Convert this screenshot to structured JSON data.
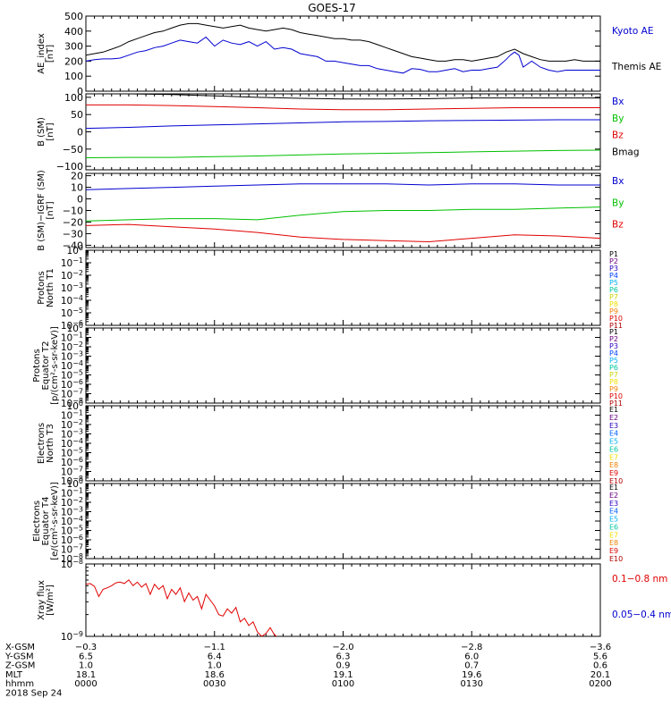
{
  "title": "GOES-17",
  "colors": {
    "black": "#000000",
    "red": "#e00000",
    "blue": "#0000d0",
    "green": "#00c000"
  },
  "chart_data": [
    {
      "id": "ae",
      "type": "line",
      "ylabel": [
        "AE_index",
        "[nT]"
      ],
      "ylim": [
        0,
        500
      ],
      "yticks": [
        0,
        100,
        200,
        300,
        400,
        500
      ],
      "ytick_labels": [
        "0",
        "100",
        "200",
        "300",
        "400",
        "500"
      ],
      "legend": [
        {
          "label": "Kyoto AE",
          "color": "#0000d0"
        },
        {
          "label": "Themis AE",
          "color": "#000000"
        }
      ],
      "series": [
        {
          "name": "Themis AE",
          "color": "#000000",
          "x": [
            0,
            2,
            4,
            6,
            8,
            10,
            12,
            14,
            16,
            18,
            20,
            22,
            24,
            26,
            28,
            30,
            32,
            34,
            36,
            38,
            40,
            42,
            44,
            46,
            48,
            50,
            52,
            54,
            56,
            58,
            60,
            62,
            64,
            66,
            68,
            70,
            72,
            74,
            76,
            78,
            80,
            82,
            84,
            86,
            88,
            90,
            92,
            94,
            96,
            98,
            100,
            102,
            104,
            106,
            108,
            110,
            112,
            114,
            116,
            118,
            120
          ],
          "values": [
            240,
            250,
            260,
            280,
            300,
            330,
            350,
            370,
            390,
            400,
            420,
            440,
            450,
            450,
            440,
            430,
            420,
            430,
            440,
            420,
            410,
            400,
            410,
            420,
            410,
            390,
            380,
            370,
            360,
            350,
            350,
            340,
            340,
            330,
            310,
            290,
            270,
            250,
            230,
            220,
            210,
            200,
            200,
            210,
            210,
            200,
            210,
            220,
            230,
            260,
            280,
            250,
            230,
            210,
            200,
            200,
            200,
            210,
            200,
            200,
            200
          ]
        },
        {
          "name": "Kyoto AE",
          "color": "#0000d0",
          "x": [
            0,
            2,
            4,
            6,
            8,
            10,
            12,
            14,
            16,
            18,
            20,
            22,
            24,
            26,
            28,
            30,
            32,
            34,
            36,
            38,
            40,
            42,
            44,
            46,
            48,
            50,
            52,
            54,
            56,
            58,
            60,
            62,
            64,
            66,
            68,
            70,
            72,
            74,
            76,
            78,
            80,
            82,
            84,
            86,
            88,
            90,
            92,
            94,
            96,
            98,
            99,
            100,
            101,
            102,
            104,
            106,
            108,
            110,
            112,
            114,
            116,
            118,
            120
          ],
          "values": [
            200,
            210,
            215,
            215,
            220,
            240,
            260,
            270,
            290,
            300,
            320,
            340,
            330,
            320,
            360,
            300,
            340,
            320,
            310,
            330,
            300,
            330,
            280,
            290,
            280,
            250,
            240,
            230,
            200,
            200,
            190,
            180,
            170,
            170,
            150,
            140,
            130,
            120,
            150,
            145,
            130,
            130,
            140,
            150,
            130,
            140,
            140,
            150,
            160,
            210,
            240,
            260,
            240,
            160,
            200,
            160,
            140,
            130,
            140,
            140,
            140,
            140,
            140
          ]
        }
      ]
    },
    {
      "id": "b_sm",
      "type": "line",
      "ylabel": [
        "B (SM)",
        "[nT]"
      ],
      "ylim": [
        -110,
        110
      ],
      "yticks": [
        -100,
        -50,
        0,
        50,
        100
      ],
      "ytick_labels": [
        "−100",
        "−50",
        "0",
        "50",
        "100"
      ],
      "legend": [
        {
          "label": "Bx",
          "color": "#0000d0"
        },
        {
          "label": "By",
          "color": "#00c000"
        },
        {
          "label": "Bz",
          "color": "#e00000"
        },
        {
          "label": "Bmag",
          "color": "#000000"
        }
      ],
      "series": [
        {
          "name": "Bmag",
          "color": "#000000",
          "x": [
            0,
            10,
            20,
            30,
            40,
            50,
            60,
            70,
            80,
            90,
            100,
            110,
            120
          ],
          "values": [
            112,
            110,
            108,
            104,
            100,
            97,
            95,
            95,
            96,
            98,
            98,
            98,
            98
          ]
        },
        {
          "name": "Bz",
          "color": "#e00000",
          "x": [
            0,
            10,
            20,
            30,
            40,
            50,
            60,
            70,
            80,
            90,
            100,
            110,
            120
          ],
          "values": [
            78,
            78,
            76,
            73,
            70,
            66,
            64,
            64,
            66,
            68,
            70,
            70,
            70
          ]
        },
        {
          "name": "Bx",
          "color": "#0000d0",
          "x": [
            0,
            10,
            20,
            30,
            40,
            50,
            60,
            70,
            80,
            90,
            100,
            110,
            120
          ],
          "values": [
            10,
            13,
            17,
            20,
            23,
            26,
            29,
            30,
            32,
            33,
            34,
            35,
            35
          ]
        },
        {
          "name": "By",
          "color": "#00c000",
          "x": [
            0,
            10,
            20,
            30,
            40,
            50,
            60,
            70,
            80,
            90,
            100,
            110,
            120
          ],
          "values": [
            -75,
            -74,
            -74,
            -72,
            -70,
            -67,
            -64,
            -62,
            -60,
            -58,
            -56,
            -54,
            -53
          ]
        }
      ]
    },
    {
      "id": "b_igrf",
      "type": "line",
      "ylabel": [
        "B (SM)−IGRF (SM)",
        "[nT]"
      ],
      "ylim": [
        -42,
        22
      ],
      "yticks": [
        -40,
        -30,
        -20,
        -10,
        0,
        10,
        20
      ],
      "ytick_labels": [
        "−40",
        "−30",
        "−20",
        "−10",
        "0",
        "10",
        "20"
      ],
      "legend": [
        {
          "label": "Bx",
          "color": "#0000d0"
        },
        {
          "label": "By",
          "color": "#00c000"
        },
        {
          "label": "Bz",
          "color": "#e00000"
        }
      ],
      "series": [
        {
          "name": "Bx",
          "color": "#0000d0",
          "x": [
            0,
            10,
            20,
            30,
            40,
            50,
            60,
            70,
            80,
            90,
            100,
            110,
            120
          ],
          "values": [
            8,
            9,
            10,
            11,
            12,
            13,
            13,
            13,
            12,
            13,
            13,
            12,
            12
          ]
        },
        {
          "name": "By",
          "color": "#00c000",
          "x": [
            0,
            10,
            20,
            30,
            40,
            50,
            60,
            70,
            80,
            90,
            100,
            110,
            120
          ],
          "values": [
            -19,
            -18,
            -17,
            -17,
            -18,
            -14,
            -11,
            -10,
            -10,
            -9,
            -9,
            -8,
            -7
          ]
        },
        {
          "name": "Bz",
          "color": "#e00000",
          "x": [
            0,
            10,
            20,
            30,
            40,
            50,
            60,
            70,
            80,
            90,
            100,
            110,
            120
          ],
          "values": [
            -23,
            -22,
            -24,
            -26,
            -29,
            -33,
            -35,
            -36,
            -37,
            -34,
            -31,
            -32,
            -34
          ]
        }
      ]
    },
    {
      "id": "protons_t1",
      "type": "line",
      "ylabel": [
        "Protons",
        "North T1"
      ],
      "yscale": "log",
      "ylim": [
        -6,
        0
      ],
      "ytick_exponents": [
        -6,
        -5,
        -4,
        -3,
        -2,
        -1,
        0
      ],
      "legend": [
        {
          "label": "P1",
          "color": "#000000"
        },
        {
          "label": "P2",
          "color": "#6a0080"
        },
        {
          "label": "P3",
          "color": "#2a00c0"
        },
        {
          "label": "P4",
          "color": "#0040ff"
        },
        {
          "label": "P5",
          "color": "#00b0f0"
        },
        {
          "label": "P6",
          "color": "#00c8a0"
        },
        {
          "label": "P7",
          "color": "#c8d800"
        },
        {
          "label": "P8",
          "color": "#f0e000"
        },
        {
          "label": "P9",
          "color": "#f08000"
        },
        {
          "label": "P10",
          "color": "#e00000"
        },
        {
          "label": "P11",
          "color": "#b00000"
        }
      ],
      "series": []
    },
    {
      "id": "protons_t2",
      "type": "line",
      "ylabel": [
        "Protons",
        "Equator T2",
        "[p/(cm²-s-sr-keV)]"
      ],
      "yscale": "log",
      "ylim": [
        -8,
        0
      ],
      "ytick_exponents": [
        -8,
        -7,
        -6,
        -5,
        -4,
        -3,
        -2,
        -1,
        0
      ],
      "legend": [
        {
          "label": "P1",
          "color": "#000000"
        },
        {
          "label": "P2",
          "color": "#6a0080"
        },
        {
          "label": "P3",
          "color": "#2a00c0"
        },
        {
          "label": "P4",
          "color": "#0040ff"
        },
        {
          "label": "P5",
          "color": "#00b0f0"
        },
        {
          "label": "P6",
          "color": "#00c8a0"
        },
        {
          "label": "P7",
          "color": "#c8d800"
        },
        {
          "label": "P8",
          "color": "#f0e000"
        },
        {
          "label": "P9",
          "color": "#f08000"
        },
        {
          "label": "P10",
          "color": "#e00000"
        },
        {
          "label": "P11",
          "color": "#b00000"
        }
      ],
      "series": []
    },
    {
      "id": "electrons_t3",
      "type": "line",
      "ylabel": [
        "Electrons",
        "North T3"
      ],
      "yscale": "log",
      "ylim": [
        -8,
        0
      ],
      "ytick_exponents": [
        -8,
        -7,
        -6,
        -5,
        -4,
        -3,
        -2,
        -1,
        0
      ],
      "legend": [
        {
          "label": "E1",
          "color": "#000000"
        },
        {
          "label": "E2",
          "color": "#6a0080"
        },
        {
          "label": "E3",
          "color": "#2a00c0"
        },
        {
          "label": "E4",
          "color": "#0060ff"
        },
        {
          "label": "E5",
          "color": "#00b0f0"
        },
        {
          "label": "E6",
          "color": "#00c8a0"
        },
        {
          "label": "E7",
          "color": "#f0e000"
        },
        {
          "label": "E8",
          "color": "#f08000"
        },
        {
          "label": "E9",
          "color": "#e00000"
        },
        {
          "label": "E10",
          "color": "#b00000"
        }
      ],
      "series": []
    },
    {
      "id": "electrons_t4",
      "type": "line",
      "ylabel": [
        "Electrons",
        "Equator T4",
        "[e/(cm²-s-sr-keV)]"
      ],
      "yscale": "log",
      "ylim": [
        -8,
        0
      ],
      "ytick_exponents": [
        -8,
        -7,
        -6,
        -5,
        -4,
        -3,
        -2,
        -1,
        0
      ],
      "legend": [
        {
          "label": "E1",
          "color": "#000000"
        },
        {
          "label": "E2",
          "color": "#6a0080"
        },
        {
          "label": "E3",
          "color": "#2a00c0"
        },
        {
          "label": "E4",
          "color": "#0060ff"
        },
        {
          "label": "E5",
          "color": "#00b0f0"
        },
        {
          "label": "E6",
          "color": "#00c8a0"
        },
        {
          "label": "E7",
          "color": "#f0e000"
        },
        {
          "label": "E8",
          "color": "#f08000"
        },
        {
          "label": "E9",
          "color": "#e00000"
        },
        {
          "label": "E10",
          "color": "#b00000"
        }
      ],
      "series": []
    },
    {
      "id": "xray",
      "type": "line",
      "ylabel": [
        "Xray flux",
        "[W/m²]"
      ],
      "yscale": "log",
      "ylim": [
        -9,
        -8
      ],
      "ytick_exponents": [
        -9,
        -8
      ],
      "legend": [
        {
          "label": "0.1−0.8 nm",
          "color": "#e00000"
        },
        {
          "label": "0.05−0.4 nm",
          "color": "#0000d0"
        }
      ],
      "series": [
        {
          "name": "0.1−0.8 nm",
          "color": "#e00000",
          "x": [
            0,
            1,
            2,
            3,
            4,
            5,
            6,
            7,
            8,
            9,
            10,
            11,
            12,
            13,
            14,
            15,
            16,
            17,
            18,
            19,
            20,
            21,
            22,
            23,
            24,
            25,
            26,
            27,
            28,
            29,
            30,
            31,
            32,
            33,
            34,
            35,
            36,
            37,
            38,
            39,
            40,
            41,
            42,
            43,
            44,
            45
          ],
          "values": [
            -8.28,
            -8.27,
            -8.31,
            -8.45,
            -8.35,
            -8.33,
            -8.3,
            -8.26,
            -8.25,
            -8.27,
            -8.22,
            -8.3,
            -8.25,
            -8.32,
            -8.27,
            -8.42,
            -8.28,
            -8.35,
            -8.3,
            -8.48,
            -8.35,
            -8.42,
            -8.33,
            -8.52,
            -8.4,
            -8.5,
            -8.45,
            -8.62,
            -8.42,
            -8.5,
            -8.58,
            -8.7,
            -8.72,
            -8.62,
            -8.68,
            -8.6,
            -8.8,
            -8.75,
            -8.85,
            -8.8,
            -8.94,
            -9.0,
            -8.96,
            -8.88,
            -8.98,
            -9.02
          ]
        }
      ]
    }
  ],
  "x_axis": {
    "xlim": [
      0,
      120
    ],
    "tick_positions": [
      0,
      30,
      60,
      90,
      120
    ],
    "row_labels": [
      "X-GSM",
      "Y-GSM",
      "Z-GSM",
      "MLT",
      "hhmm"
    ],
    "rows": [
      [
        "−0.3",
        "−1.1",
        "−2.0",
        "−2.8",
        "−3.6"
      ],
      [
        "6.5",
        "6.4",
        "6.3",
        "6.0",
        "5.6"
      ],
      [
        "1.0",
        "1.0",
        "0.9",
        "0.7",
        "0.6"
      ],
      [
        "18.1",
        "18.6",
        "19.1",
        "19.6",
        "20.1"
      ],
      [
        "0000",
        "0030",
        "0100",
        "0130",
        "0200"
      ]
    ],
    "date": "2018 Sep 24"
  }
}
